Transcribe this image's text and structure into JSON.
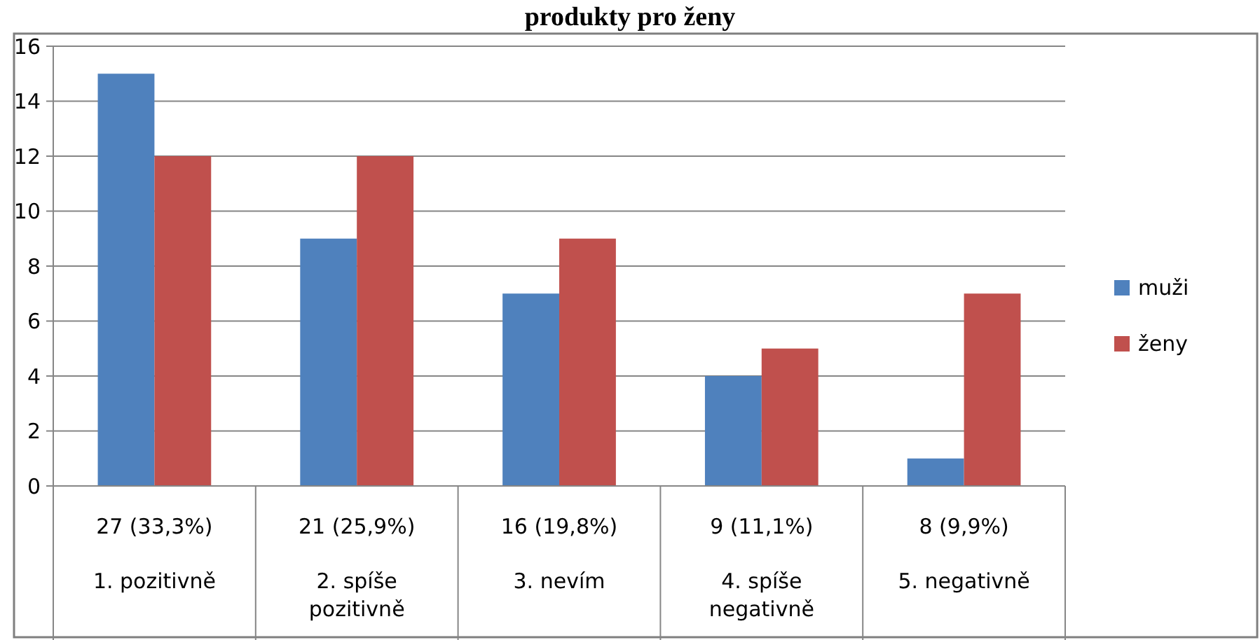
{
  "chart_data": {
    "type": "bar",
    "title": "produkty pro ženy",
    "categories": [
      "1. pozitivně",
      "2. spíše pozitivně",
      "3. nevím",
      "4. spíše negativně",
      "5. negativně"
    ],
    "totals": [
      "27 (33,3%)",
      "21 (25,9%)",
      "16 (19,8%)",
      "9 (11,1%)",
      "8 (9,9%)"
    ],
    "series": [
      {
        "name": "muži",
        "color": "#4f81bd",
        "values": [
          15,
          9,
          7,
          4,
          1
        ]
      },
      {
        "name": "ženy",
        "color": "#c0504d",
        "values": [
          12,
          12,
          9,
          5,
          7
        ]
      }
    ],
    "ylim": [
      0,
      16
    ],
    "yticks": [
      0,
      2,
      4,
      6,
      8,
      10,
      12,
      14,
      16
    ],
    "grid": "y",
    "legend": "right"
  }
}
